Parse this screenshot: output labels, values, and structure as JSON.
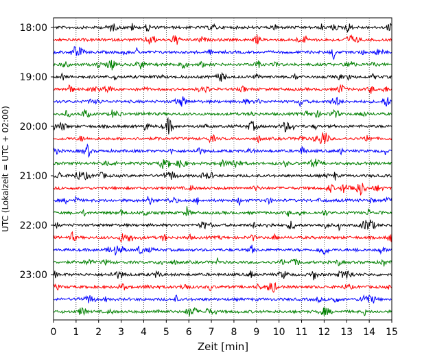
{
  "chart_data": {
    "type": "line",
    "subtype": "helicorder",
    "xlabel": "Zeit  [min]",
    "ylabel": "UTC (Lokalzeit = UTC + 02:00)",
    "xlim": [
      0,
      15
    ],
    "x_ticks": [
      0,
      1,
      2,
      3,
      4,
      5,
      6,
      7,
      8,
      9,
      10,
      11,
      12,
      13,
      14,
      15
    ],
    "y_ticks": [
      "18:00",
      "19:00",
      "20:00",
      "21:00",
      "22:00",
      "23:00"
    ],
    "trace_colors": [
      "#000000",
      "#ff0000",
      "#0000ff",
      "#008000"
    ],
    "traces_per_hour": 4,
    "trace_count": 24,
    "x_grid": "dotted vertical lines at every minute"
  }
}
